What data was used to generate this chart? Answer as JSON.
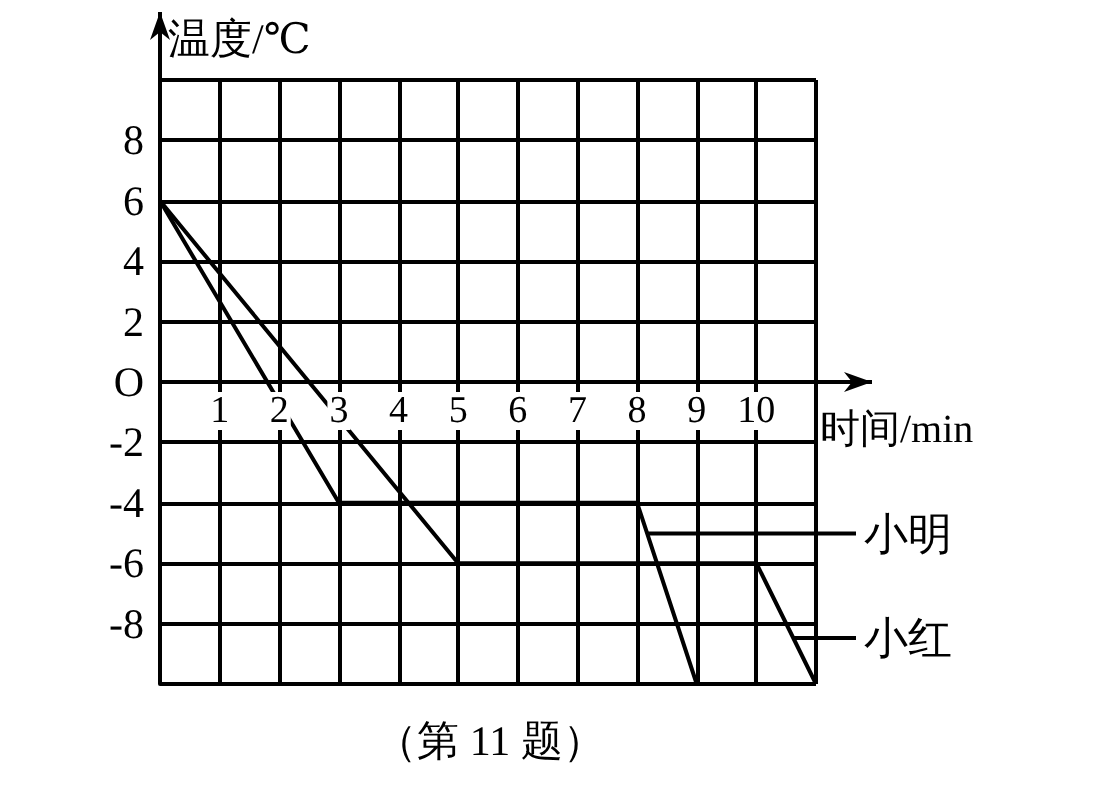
{
  "chart_data": {
    "type": "line",
    "xlabel": "时间/min",
    "ylabel": "温度/℃",
    "annotations": [
      "（第 11 题）"
    ],
    "series": [
      {
        "name": "小明",
        "color": "#000000",
        "x": [
          0,
          3,
          8,
          9
        ],
        "values": [
          6,
          -4,
          -4,
          -10
        ]
      },
      {
        "name": "小红",
        "color": "#000000",
        "x": [
          0,
          5,
          10,
          11
        ],
        "values": [
          6,
          -6,
          -6,
          -10
        ]
      }
    ],
    "xlim": [
      0,
      11
    ],
    "xticks": [
      {
        "value": 0,
        "label": null
      },
      1,
      2,
      3,
      4,
      5,
      6,
      7,
      8,
      9,
      10,
      {
        "value": 11,
        "label": null
      }
    ],
    "ylim": [
      -10,
      10
    ],
    "yticks": [
      {
        "value": -10,
        "label": null
      },
      -8,
      -6,
      -4,
      -2,
      {
        "value": 0,
        "label": "O"
      },
      2,
      4,
      6,
      8,
      {
        "value": 10,
        "label": null
      }
    ],
    "grid": true,
    "legend": "right",
    "marker": "none",
    "line_style": "solid"
  }
}
